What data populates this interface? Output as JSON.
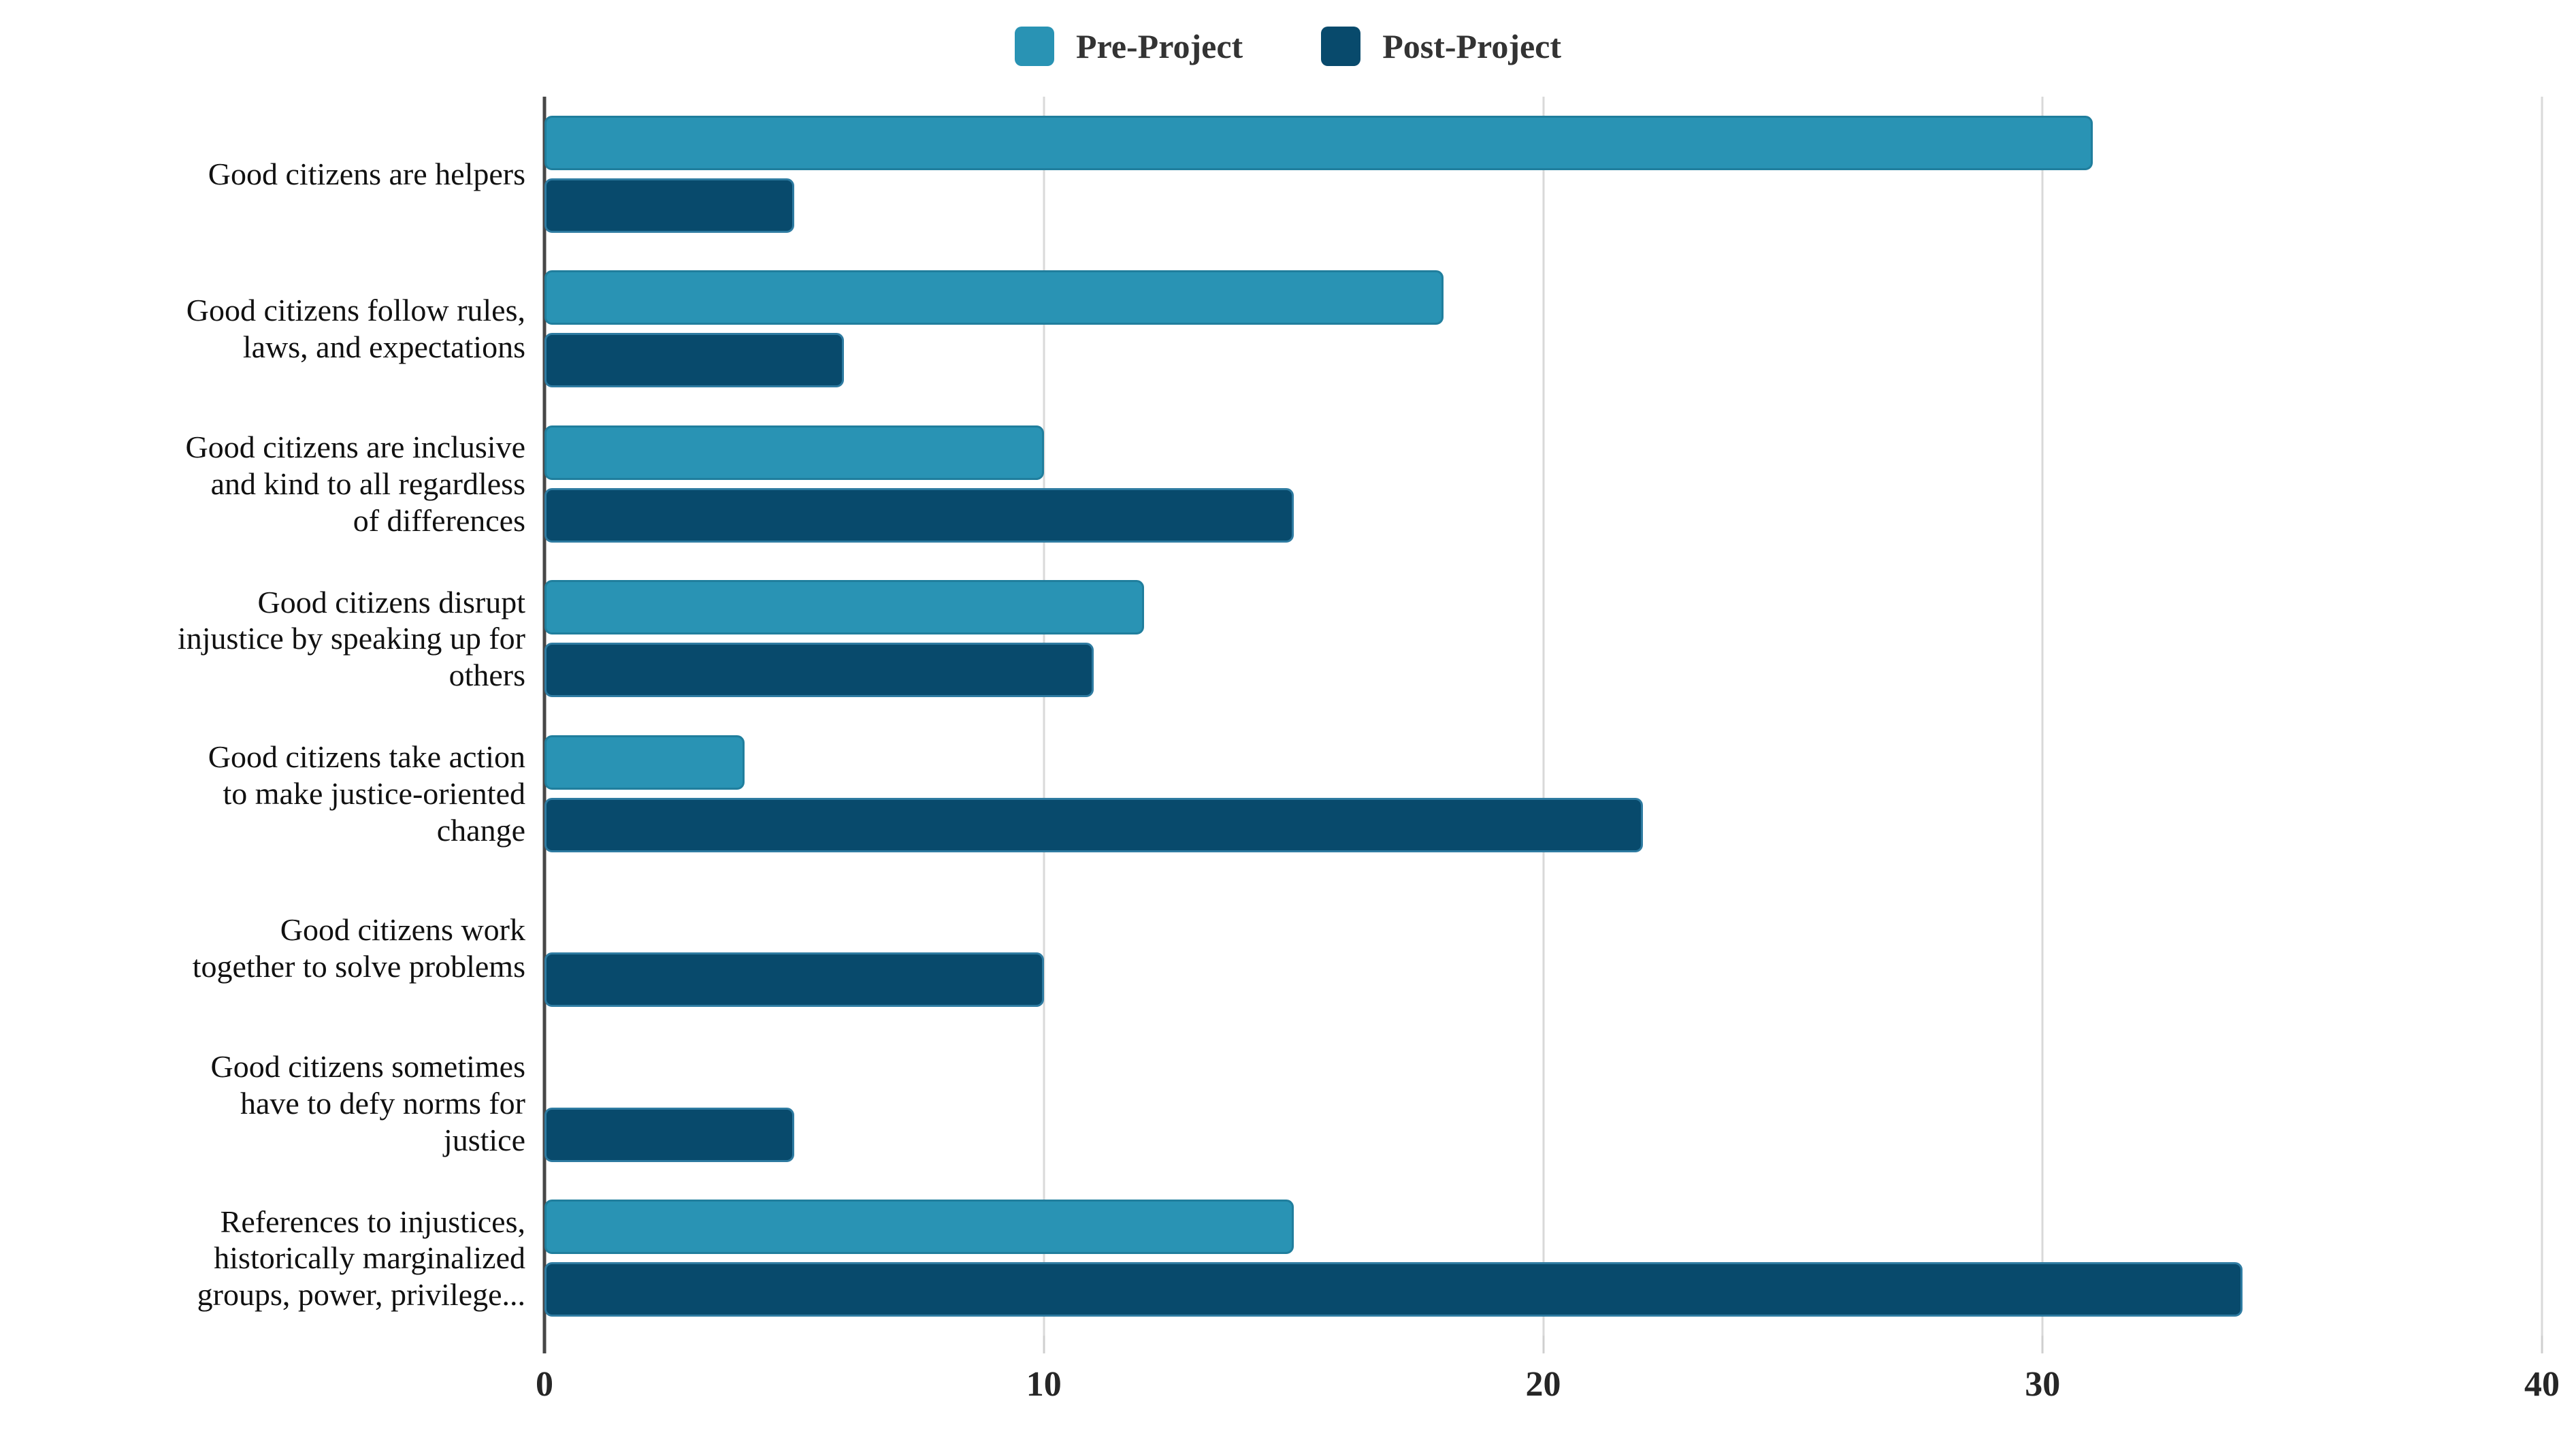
{
  "legend": {
    "position": "top"
  },
  "chart_data": {
    "type": "bar",
    "orientation": "horizontal",
    "title": "",
    "xlabel": "",
    "ylabel": "",
    "grid": "vertical",
    "legend_position": "top",
    "xlim": [
      0,
      40
    ],
    "x_ticks": [
      0,
      10,
      20,
      30,
      40
    ],
    "categories": [
      "Good citizens are helpers",
      "Good citizens follow rules, laws, and expectations",
      "Good citizens are inclusive and kind to all regardless of differences",
      "Good citizens disrupt injustice by speaking up for others",
      "Good citizens take action to make justice-oriented change",
      "Good citizens work together to solve problems",
      "Good citizens sometimes have to defy norms for justice",
      "References to injustices, historically marginalized groups, power, privilege..."
    ],
    "categories_lines": [
      [
        "Good citizens are helpers"
      ],
      [
        "Good citizens follow rules,",
        "laws, and expectations"
      ],
      [
        "Good citizens are inclusive",
        "and kind to all regardless",
        "of differences"
      ],
      [
        "Good citizens disrupt",
        "injustice by speaking up for",
        "others"
      ],
      [
        "Good citizens take action",
        "to make justice-oriented",
        "change"
      ],
      [
        "Good citizens work",
        "together to solve problems"
      ],
      [
        "Good citizens sometimes",
        "have to defy norms for",
        "justice"
      ],
      [
        "References to injustices,",
        "historically marginalized",
        "groups, power, privilege..."
      ]
    ],
    "series": [
      {
        "name": "Pre-Project",
        "color": "#2993B4",
        "values": [
          31,
          18,
          10,
          12,
          4,
          0,
          0,
          15
        ]
      },
      {
        "name": "Post-Project",
        "color": "#084A6C",
        "values": [
          5,
          6,
          15,
          11,
          22,
          10,
          5,
          34
        ]
      }
    ],
    "colors": {
      "gridline": "#d9d9d9",
      "axis_line": "#474747",
      "tick_label": "#262626",
      "category_label": "#111111",
      "legend_label": "#333333"
    }
  }
}
